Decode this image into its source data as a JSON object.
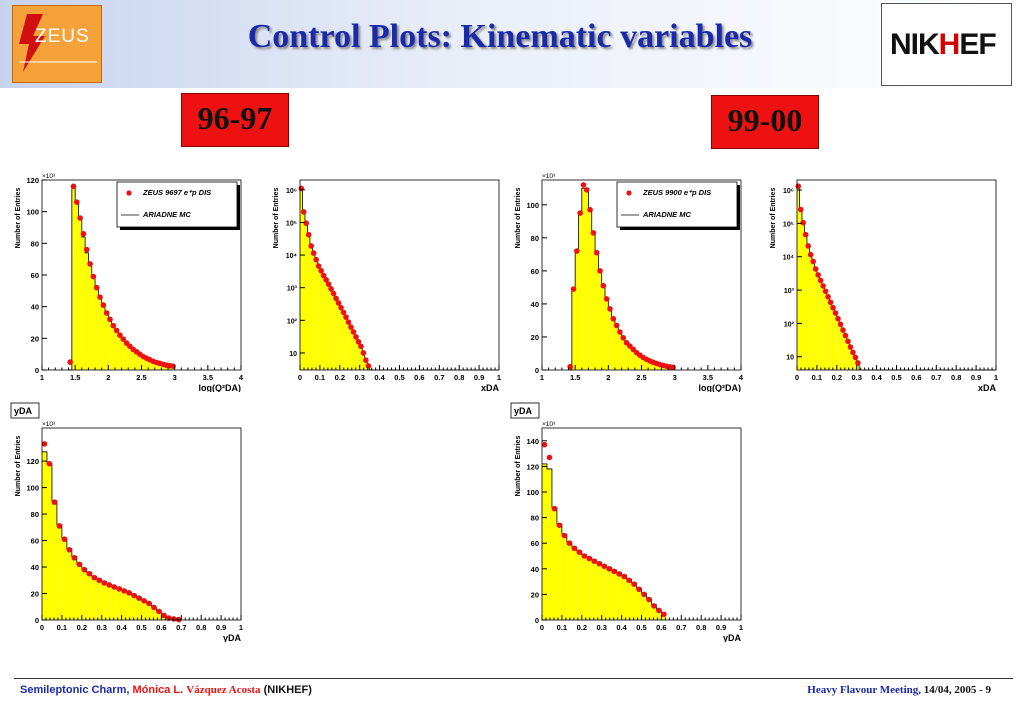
{
  "header": {
    "title": "Control Plots: Kinematic variables",
    "logo_left": "ZEUS",
    "logo_right_a": "NIK",
    "logo_right_b": "H",
    "logo_right_c": "EF"
  },
  "periods": [
    "96-97",
    "99-00"
  ],
  "footer": {
    "topic": "Semileptonic Charm",
    "sep": ",",
    "author_a": "Mónica L.",
    "author_b": "Vázquez Acosta",
    "inst": "(NIKHEF)",
    "meeting": "Heavy Flavour Meeting,",
    "date_page": "14/04, 2005 -  9"
  },
  "colors": {
    "fill": "#ffff00",
    "points": "#ee1111",
    "title_blue": "#1a2aa8"
  },
  "chart_data": [
    {
      "type": "bar",
      "panel": "Q2 96-97",
      "xlabel": "log(Q²DA)",
      "ylabel": "Number of Entries",
      "multiplier": "×10³",
      "xlim": [
        1,
        4
      ],
      "ylim": [
        0,
        120
      ],
      "xticks": [
        1,
        1.5,
        2,
        2.5,
        3,
        3.5,
        4
      ],
      "xtick_labels": [
        "1",
        "1.5",
        "2",
        "2.5",
        "3",
        "3.5",
        "4"
      ],
      "yticks": [
        0,
        20,
        40,
        60,
        80,
        100,
        120
      ],
      "legend": {
        "data": "ZEUS 9697 e⁺p DIS",
        "mc": "ARIADNE MC",
        "placement": "top-right"
      },
      "bin_start": 1.4,
      "bin_width": 0.05,
      "mc": [
        0,
        115,
        106,
        95,
        84,
        74,
        66,
        58,
        51,
        45,
        40,
        35,
        31,
        27,
        24,
        21,
        19,
        16,
        14,
        12,
        11,
        9,
        8,
        7,
        6,
        5,
        4.5,
        4,
        3.5,
        3,
        2.6,
        2.3
      ],
      "data": [
        5,
        116,
        106,
        96,
        86,
        76,
        67,
        59,
        52,
        46,
        41,
        36,
        32,
        28,
        25,
        22,
        19.5,
        17,
        15,
        13,
        11.5,
        10,
        8.5,
        7.5,
        6.5,
        5.5,
        4.8,
        4.2,
        3.6,
        3.1,
        2.7,
        2.4
      ]
    },
    {
      "type": "bar",
      "panel": "x 96-97",
      "xlabel": "xDA",
      "ylabel": "Number of Entries",
      "xlim": [
        0,
        1
      ],
      "log_y": true,
      "ylim": [
        3,
        2000000
      ],
      "xticks": [
        0,
        0.1,
        0.2,
        0.3,
        0.4,
        0.5,
        0.6,
        0.7,
        0.8,
        0.9,
        1
      ],
      "xtick_labels": [
        "0",
        "0.1",
        "0.2",
        "0.3",
        "0.4",
        "0.5",
        "0.6",
        "0.7",
        "0.8",
        "0.9",
        "1"
      ],
      "ytick_labels": [
        "10",
        "10²",
        "10³",
        "10⁴",
        "10⁵",
        "10⁶"
      ],
      "bin_start": 0,
      "bin_width": 0.0125,
      "mc": [
        1000000,
        200000,
        90000,
        40000,
        18000,
        11000,
        7000,
        4500,
        3200,
        2300,
        1700,
        1250,
        900,
        650,
        460,
        330,
        240,
        170,
        120,
        85,
        60,
        42,
        30,
        21,
        15,
        10,
        6,
        4,
        0,
        0,
        0,
        0,
        0,
        0,
        0,
        0,
        0,
        0,
        0,
        0,
        0,
        0,
        0,
        0,
        0,
        0,
        0,
        0,
        0,
        0,
        0,
        0,
        0,
        0,
        0,
        0,
        0,
        0,
        0,
        0,
        0,
        0,
        0,
        0,
        0,
        0,
        0,
        0,
        0,
        0,
        0,
        0,
        0,
        0,
        0,
        0,
        0,
        0,
        0,
        0
      ],
      "data": [
        1100000,
        210000,
        95000,
        42000,
        19000,
        11500,
        7200,
        4600,
        3300,
        2350,
        1750,
        1280,
        920,
        660,
        470,
        340,
        245,
        175,
        125,
        88,
        62,
        44,
        31,
        22,
        16,
        10,
        6,
        4
      ]
    },
    {
      "type": "bar",
      "panel": "y 96-97",
      "xlabel": "yDA",
      "ylabel": "Number of Entries",
      "multiplier": "×10³",
      "xlim": [
        0,
        1
      ],
      "ylim": [
        0,
        145
      ],
      "xticks": [
        0,
        0.1,
        0.2,
        0.3,
        0.4,
        0.5,
        0.6,
        0.7,
        0.8,
        0.9,
        1
      ],
      "xtick_labels": [
        "0",
        "0.1",
        "0.2",
        "0.3",
        "0.4",
        "0.5",
        "0.6",
        "0.7",
        "0.8",
        "0.9",
        "1"
      ],
      "yticks": [
        0,
        20,
        40,
        60,
        80,
        100,
        120
      ],
      "tag": "yDA",
      "bin_start": 0,
      "bin_width": 0.025,
      "mc": [
        127,
        118,
        90,
        72,
        62,
        54,
        48,
        43,
        39,
        36,
        33,
        31,
        29,
        27,
        25.5,
        24,
        22.5,
        21,
        19,
        17,
        15,
        13,
        10,
        7,
        4,
        2,
        1,
        0.5
      ],
      "data": [
        133,
        118,
        89,
        71,
        61,
        53,
        47,
        42,
        38,
        35,
        32,
        30,
        28,
        26.5,
        25,
        23.5,
        22,
        20.5,
        18.5,
        16.5,
        14.5,
        12.5,
        9.5,
        6.5,
        3.5,
        1.5,
        0.8,
        0.3
      ]
    },
    {
      "type": "bar",
      "panel": "Q2 99-00",
      "xlabel": "log(Q²DA)",
      "ylabel": "Number of Entries",
      "multiplier": "×10³",
      "xlim": [
        1,
        4
      ],
      "ylim": [
        0,
        115
      ],
      "xticks": [
        1,
        1.5,
        2,
        2.5,
        3,
        3.5,
        4
      ],
      "xtick_labels": [
        "1",
        "1.5",
        "2",
        "2.5",
        "3",
        "3.5",
        "4"
      ],
      "yticks": [
        0,
        20,
        40,
        60,
        80,
        100
      ],
      "legend": {
        "data": "ZEUS 9900 e⁺p DIS",
        "mc": "ARIADNE MC",
        "placement": "top-right"
      },
      "bin_start": 1.4,
      "bin_width": 0.05,
      "mc": [
        0,
        48,
        73,
        96,
        110,
        108,
        96,
        82,
        70,
        59,
        50,
        42,
        36,
        30,
        26,
        22,
        19,
        16,
        14,
        12,
        10,
        8.5,
        7.3,
        6.2,
        5.3,
        4.5,
        3.8,
        3.2,
        2.7,
        2.2,
        1.8,
        1.5
      ],
      "data": [
        2,
        49,
        72,
        95,
        112,
        109,
        97,
        83,
        71,
        60,
        51,
        43,
        37,
        31,
        27,
        23,
        19.5,
        16.5,
        14.5,
        12.5,
        10.5,
        9,
        7.6,
        6.5,
        5.5,
        4.7,
        4,
        3.3,
        2.8,
        2.3,
        1.9,
        1.6
      ]
    },
    {
      "type": "bar",
      "panel": "x 99-00",
      "xlabel": "xDA",
      "ylabel": "Number of Entries",
      "xlim": [
        0,
        1
      ],
      "log_y": true,
      "ylim": [
        4,
        2000000
      ],
      "xticks": [
        0,
        0.1,
        0.2,
        0.3,
        0.4,
        0.5,
        0.6,
        0.7,
        0.8,
        0.9,
        1
      ],
      "xtick_labels": [
        "0",
        "0.1",
        "0.2",
        "0.3",
        "0.4",
        "0.5",
        "0.6",
        "0.7",
        "0.8",
        "0.9",
        "1"
      ],
      "ytick_labels": [
        "10",
        "10²",
        "10³",
        "10⁴",
        "10⁵",
        "10⁶"
      ],
      "bin_start": 0,
      "bin_width": 0.0125,
      "mc": [
        1200000,
        250000,
        100000,
        45000,
        20000,
        11000,
        7000,
        4200,
        2800,
        1900,
        1300,
        900,
        620,
        420,
        290,
        200,
        135,
        92,
        62,
        42,
        28,
        19,
        13,
        9,
        6,
        0,
        0,
        0,
        0,
        0,
        0,
        0,
        0,
        0,
        0,
        0,
        0,
        0,
        0,
        0,
        0,
        0,
        0,
        0,
        0,
        0,
        0,
        0,
        0,
        0,
        0,
        0,
        0,
        0,
        0,
        0,
        0,
        0,
        0,
        0,
        0,
        0,
        0,
        0,
        0,
        0,
        0,
        0,
        0,
        0,
        0,
        0,
        0,
        0,
        0,
        0,
        0,
        0,
        0,
        0
      ],
      "data": [
        1300000,
        260000,
        105000,
        46000,
        21000,
        11500,
        7200,
        4300,
        2850,
        1950,
        1330,
        920,
        630,
        430,
        295,
        205,
        138,
        94,
        63,
        43,
        29,
        19.5,
        13.5,
        9.5,
        6.5
      ]
    },
    {
      "type": "bar",
      "panel": "y 99-00",
      "xlabel": "yDA",
      "ylabel": "Number of Entries",
      "multiplier": "×10³",
      "xlim": [
        0,
        1
      ],
      "ylim": [
        0,
        150
      ],
      "xticks": [
        0,
        0.1,
        0.2,
        0.3,
        0.4,
        0.5,
        0.6,
        0.7,
        0.8,
        0.9,
        1
      ],
      "xtick_labels": [
        "0",
        "0.1",
        "0.2",
        "0.3",
        "0.4",
        "0.5",
        "0.6",
        "0.7",
        "0.8",
        "0.9",
        "1"
      ],
      "yticks": [
        0,
        20,
        40,
        60,
        80,
        100,
        120,
        140
      ],
      "tag": "yDA",
      "bin_start": 0,
      "bin_width": 0.025,
      "mc": [
        122,
        118,
        88,
        75,
        67,
        61,
        57,
        54,
        51,
        49,
        47,
        45,
        43,
        41,
        39,
        37,
        35,
        32,
        29,
        25,
        21,
        17,
        12,
        8,
        5
      ],
      "data": [
        137,
        127,
        87,
        74,
        66,
        60,
        56,
        53,
        50,
        48,
        46,
        44,
        42,
        40,
        38,
        36,
        34,
        31,
        28,
        24,
        20,
        16,
        11,
        7.5,
        4.5
      ]
    }
  ]
}
